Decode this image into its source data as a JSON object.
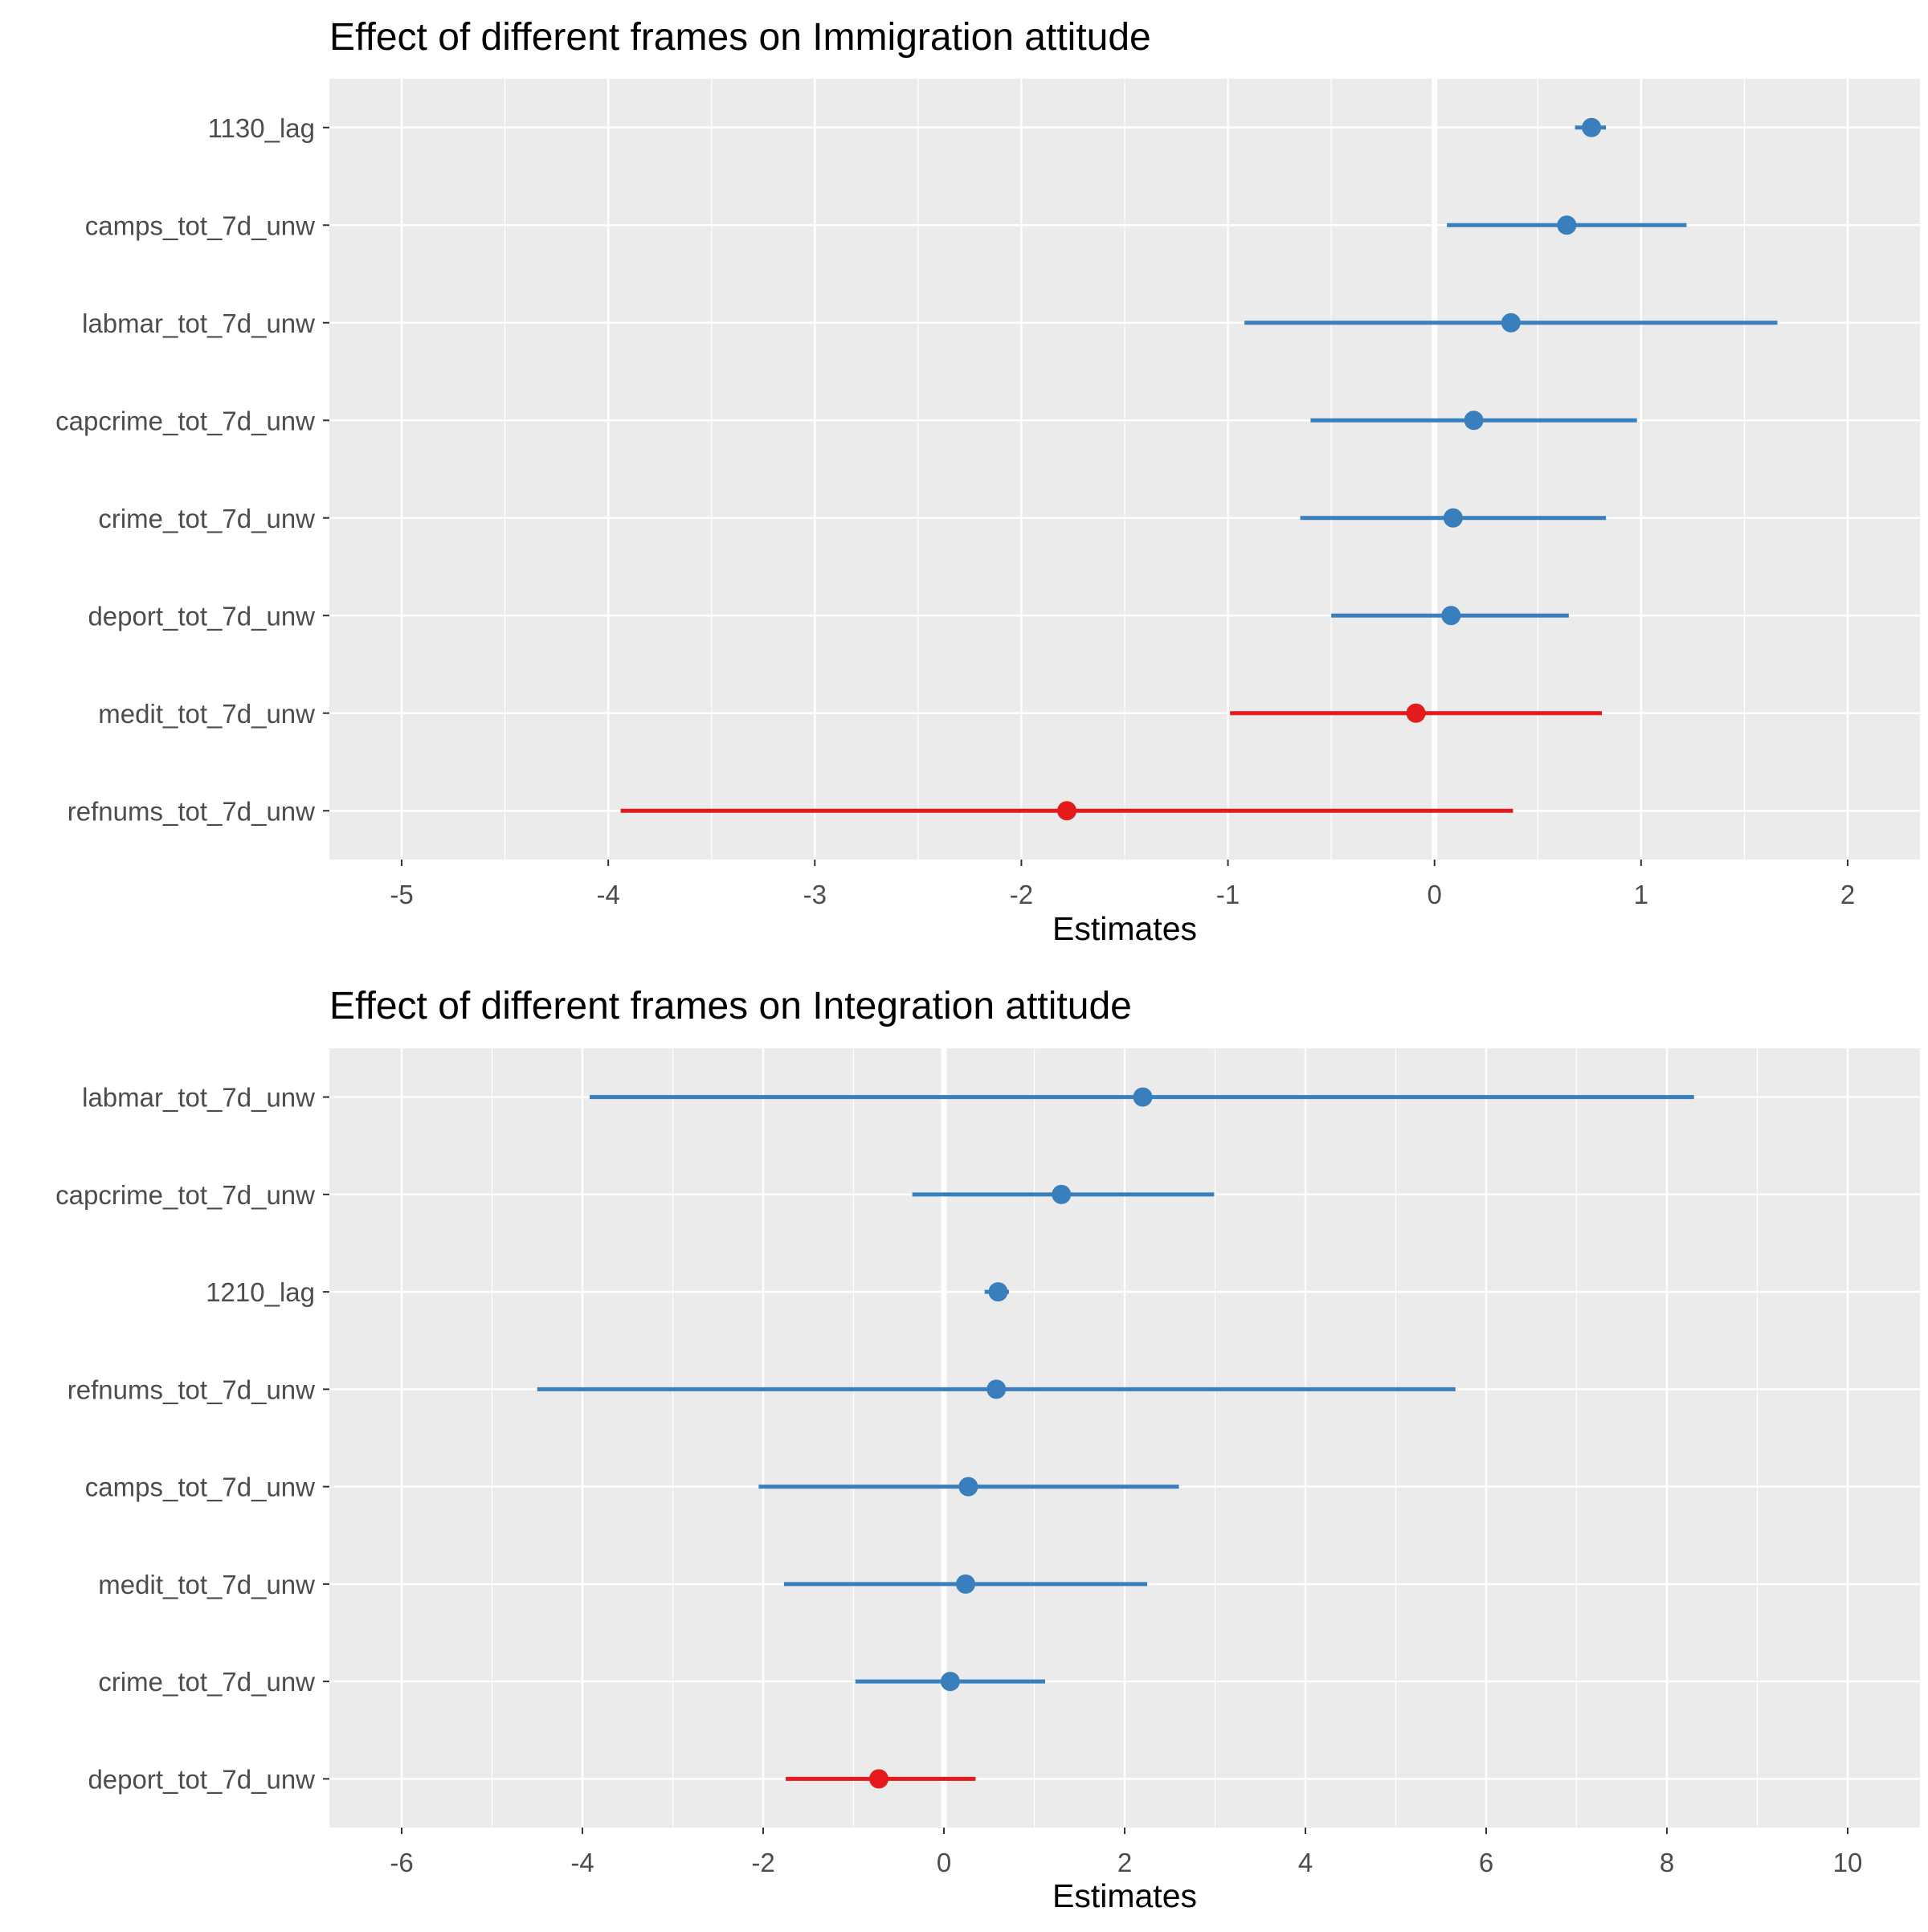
{
  "colors": {
    "panel": "#ebebeb",
    "grid_major": "#ffffff",
    "positive": "#3a7fbd",
    "negative": "#e41a1c",
    "tick_text": "#4d4d4d"
  },
  "chart_data": [
    {
      "type": "dot-whisker",
      "title": "Effect of different frames on Immigration attitude",
      "xlabel": "Estimates",
      "ylabel": "",
      "xlim": [
        -5.35,
        2.35
      ],
      "xticks": [
        "-5",
        "-4",
        "-3",
        "-2",
        "-1",
        "0",
        "1",
        "2"
      ],
      "grid": true,
      "terms": [
        {
          "label": "1130_lag",
          "estimate": 0.76,
          "low": 0.68,
          "high": 0.83,
          "sign": "positive"
        },
        {
          "label": "camps_tot_7d_unw",
          "estimate": 0.64,
          "low": 0.06,
          "high": 1.22,
          "sign": "positive"
        },
        {
          "label": "labmar_tot_7d_unw",
          "estimate": 0.37,
          "low": -0.92,
          "high": 1.66,
          "sign": "positive"
        },
        {
          "label": "capcrime_tot_7d_unw",
          "estimate": 0.19,
          "low": -0.6,
          "high": 0.98,
          "sign": "positive"
        },
        {
          "label": "crime_tot_7d_unw",
          "estimate": 0.09,
          "low": -0.65,
          "high": 0.83,
          "sign": "positive"
        },
        {
          "label": "deport_tot_7d_unw",
          "estimate": 0.08,
          "low": -0.5,
          "high": 0.65,
          "sign": "positive"
        },
        {
          "label": "medit_tot_7d_unw",
          "estimate": -0.09,
          "low": -0.99,
          "high": 0.81,
          "sign": "negative"
        },
        {
          "label": "refnums_tot_7d_unw",
          "estimate": -1.78,
          "low": -3.94,
          "high": 0.38,
          "sign": "negative"
        }
      ]
    },
    {
      "type": "dot-whisker",
      "title": "Effect of different frames on Integration attitude",
      "xlabel": "Estimates",
      "ylabel": "",
      "xlim": [
        -6.8,
        10.8
      ],
      "xticks": [
        "-6",
        "-4",
        "-2",
        "0",
        "2",
        "4",
        "6",
        "8",
        "10"
      ],
      "grid": true,
      "terms": [
        {
          "label": "labmar_tot_7d_unw",
          "estimate": 2.2,
          "low": -3.92,
          "high": 8.3,
          "sign": "positive"
        },
        {
          "label": "capcrime_tot_7d_unw",
          "estimate": 1.3,
          "low": -0.35,
          "high": 2.99,
          "sign": "positive"
        },
        {
          "label": "1210_lag",
          "estimate": 0.6,
          "low": 0.45,
          "high": 0.72,
          "sign": "positive"
        },
        {
          "label": "refnums_tot_7d_unw",
          "estimate": 0.58,
          "low": -4.5,
          "high": 5.66,
          "sign": "positive"
        },
        {
          "label": "camps_tot_7d_unw",
          "estimate": 0.27,
          "low": -2.05,
          "high": 2.6,
          "sign": "positive"
        },
        {
          "label": "medit_tot_7d_unw",
          "estimate": 0.24,
          "low": -1.77,
          "high": 2.25,
          "sign": "positive"
        },
        {
          "label": "crime_tot_7d_unw",
          "estimate": 0.07,
          "low": -0.98,
          "high": 1.12,
          "sign": "positive"
        },
        {
          "label": "deport_tot_7d_unw",
          "estimate": -0.72,
          "low": -1.75,
          "high": 0.35,
          "sign": "negative"
        }
      ]
    }
  ]
}
